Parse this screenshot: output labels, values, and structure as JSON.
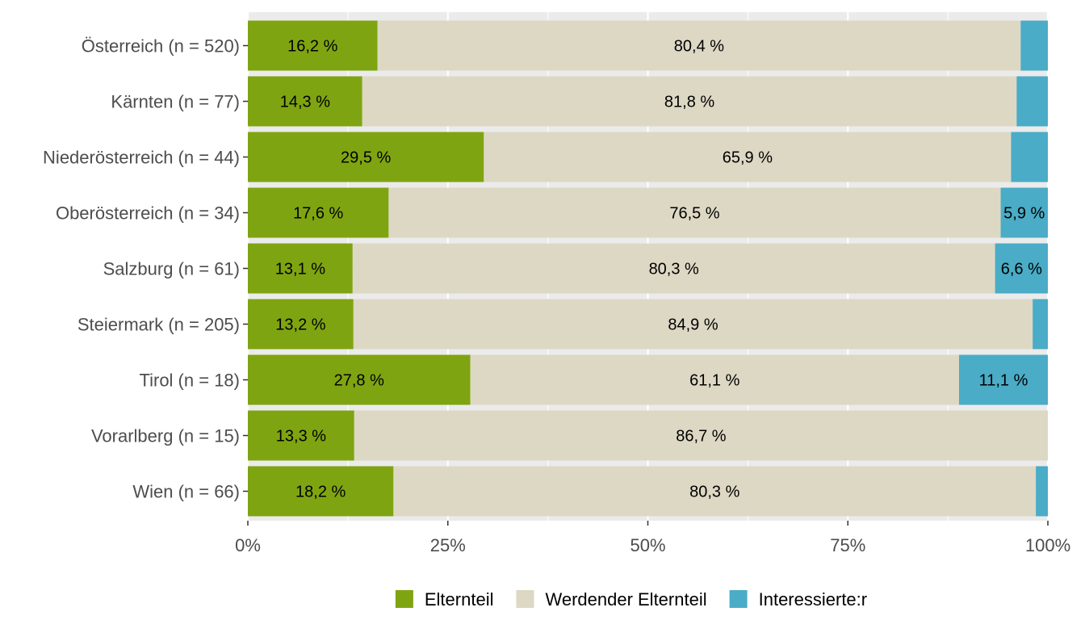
{
  "chart_data": {
    "type": "bar",
    "orientation": "horizontal",
    "stacked": "percent",
    "categories": [
      "Österreich (n = 520)",
      "Kärnten (n = 77)",
      "Niederösterreich (n = 44)",
      "Oberösterreich (n = 34)",
      "Salzburg (n = 61)",
      "Steiermark (n = 205)",
      "Tirol (n = 18)",
      "Vorarlberg (n = 15)",
      "Wien (n = 66)"
    ],
    "series": [
      {
        "name": "Elternteil",
        "color": "#7fa411",
        "values": [
          16.2,
          14.3,
          29.5,
          17.6,
          13.1,
          13.2,
          27.8,
          13.3,
          18.2
        ],
        "labels": [
          "16,2 %",
          "14,3 %",
          "29,5 %",
          "17,6 %",
          "13,1 %",
          "13,2 %",
          "27,8 %",
          "13,3 %",
          "18,2 %"
        ]
      },
      {
        "name": "Werdender Elternteil",
        "color": "#ddd8c4",
        "values": [
          80.4,
          81.8,
          65.9,
          76.5,
          80.3,
          84.9,
          61.1,
          86.7,
          80.3
        ],
        "labels": [
          "80,4 %",
          "81,8 %",
          "65,9 %",
          "76,5 %",
          "80,3 %",
          "84,9 %",
          "61,1 %",
          "86,7 %",
          "80,3 %"
        ]
      },
      {
        "name": "Interessierte:r",
        "color": "#4aacc6",
        "values": [
          3.4,
          3.9,
          4.6,
          5.9,
          6.6,
          1.9,
          11.1,
          0,
          1.5
        ],
        "labels": [
          "",
          "",
          "",
          "5,9 %",
          "6,6 %",
          "",
          "11,1 %",
          "",
          ""
        ]
      }
    ],
    "xaxis": {
      "ticks": [
        0,
        25,
        50,
        75,
        100
      ],
      "tick_labels": [
        "0%",
        "25%",
        "50%",
        "75%",
        "100%"
      ],
      "range": [
        0,
        100
      ]
    },
    "xlabel": "",
    "ylabel": "",
    "grid": true,
    "legend_position": "bottom"
  }
}
